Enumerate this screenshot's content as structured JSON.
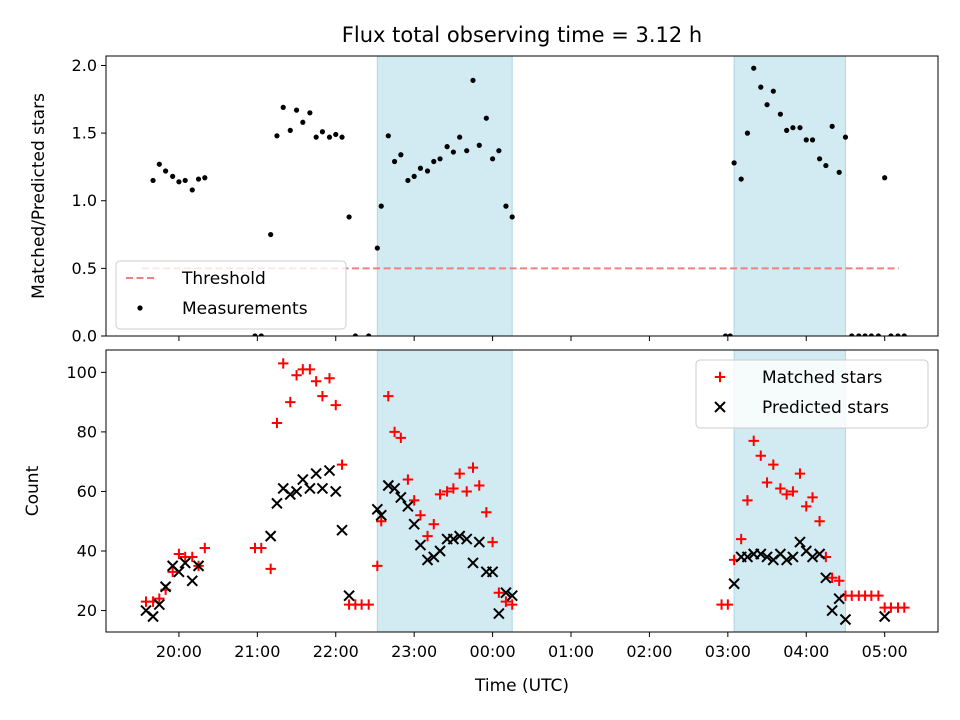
{
  "chart_data": {
    "type": "scatter",
    "title": "Flux total observing time = 3.12 h",
    "xlabel": "Time (UTC)",
    "x_unit": "hours since 00:00 UTC (values after midnight continue past 24)",
    "x_tick_labels": [
      "20:00",
      "21:00",
      "22:00",
      "23:00",
      "00:00",
      "01:00",
      "02:00",
      "03:00",
      "04:00",
      "05:00"
    ],
    "x_tick_values": [
      20,
      21,
      22,
      23,
      24,
      25,
      26,
      27,
      28,
      29
    ],
    "xlim": [
      19.07,
      29.68
    ],
    "observing_windows": [
      [
        22.53,
        24.25
      ],
      [
        27.08,
        28.5
      ]
    ],
    "window_color": "#add8e6",
    "panels": [
      {
        "ylabel": "Matched/Predicted stars",
        "ylim": [
          0,
          2.07
        ],
        "y_ticks": [
          "0.0",
          "0.5",
          "1.0",
          "1.5",
          "2.0"
        ],
        "y_tick_values": [
          0,
          0.5,
          1.0,
          1.5,
          2.0
        ],
        "legend_position": "lower-left",
        "series": [
          {
            "name": "Threshold",
            "kind": "dashed-line",
            "color": "#f08080",
            "points": [
              [
                19.53,
                0.5
              ],
              [
                29.18,
                0.5
              ]
            ]
          },
          {
            "name": "Measurements",
            "kind": "dots",
            "color": "#000000",
            "points": [
              [
                19.67,
                1.15
              ],
              [
                19.75,
                1.27
              ],
              [
                19.83,
                1.22
              ],
              [
                19.92,
                1.18
              ],
              [
                20.0,
                1.14
              ],
              [
                20.08,
                1.15
              ],
              [
                20.17,
                1.08
              ],
              [
                20.25,
                1.16
              ],
              [
                20.33,
                1.17
              ],
              [
                20.97,
                0.0
              ],
              [
                21.05,
                0.0
              ],
              [
                21.17,
                0.75
              ],
              [
                21.25,
                1.48
              ],
              [
                21.33,
                1.69
              ],
              [
                21.42,
                1.52
              ],
              [
                21.5,
                1.67
              ],
              [
                21.58,
                1.58
              ],
              [
                21.67,
                1.65
              ],
              [
                21.75,
                1.47
              ],
              [
                21.83,
                1.51
              ],
              [
                21.92,
                1.47
              ],
              [
                22.0,
                1.49
              ],
              [
                22.08,
                1.47
              ],
              [
                22.17,
                0.88
              ],
              [
                22.25,
                0.0
              ],
              [
                22.42,
                0.0
              ],
              [
                22.53,
                0.65
              ],
              [
                22.58,
                0.96
              ],
              [
                22.67,
                1.48
              ],
              [
                22.75,
                1.29
              ],
              [
                22.83,
                1.34
              ],
              [
                22.92,
                1.15
              ],
              [
                23.0,
                1.18
              ],
              [
                23.08,
                1.24
              ],
              [
                23.17,
                1.22
              ],
              [
                23.25,
                1.29
              ],
              [
                23.33,
                1.31
              ],
              [
                23.42,
                1.4
              ],
              [
                23.5,
                1.36
              ],
              [
                23.58,
                1.47
              ],
              [
                23.67,
                1.37
              ],
              [
                23.75,
                1.89
              ],
              [
                23.83,
                1.41
              ],
              [
                23.92,
                1.61
              ],
              [
                24.0,
                1.31
              ],
              [
                24.08,
                1.37
              ],
              [
                24.17,
                0.96
              ],
              [
                24.25,
                0.88
              ],
              [
                26.97,
                0.0
              ],
              [
                27.03,
                0.0
              ],
              [
                27.08,
                1.28
              ],
              [
                27.17,
                1.16
              ],
              [
                27.25,
                1.5
              ],
              [
                27.33,
                1.98
              ],
              [
                27.42,
                1.84
              ],
              [
                27.5,
                1.71
              ],
              [
                27.58,
                1.81
              ],
              [
                27.67,
                1.64
              ],
              [
                27.75,
                1.52
              ],
              [
                27.83,
                1.54
              ],
              [
                27.92,
                1.54
              ],
              [
                28.0,
                1.45
              ],
              [
                28.08,
                1.45
              ],
              [
                28.17,
                1.31
              ],
              [
                28.25,
                1.26
              ],
              [
                28.33,
                1.55
              ],
              [
                28.42,
                1.21
              ],
              [
                28.5,
                1.47
              ],
              [
                28.58,
                0.0
              ],
              [
                28.67,
                0.0
              ],
              [
                28.75,
                0.0
              ],
              [
                28.83,
                0.0
              ],
              [
                28.92,
                0.0
              ],
              [
                29.0,
                1.17
              ],
              [
                29.08,
                0.0
              ],
              [
                29.17,
                0.0
              ],
              [
                29.25,
                0.0
              ]
            ]
          }
        ]
      },
      {
        "ylabel": "Count",
        "ylim": [
          12.8,
          107.5
        ],
        "y_ticks": [
          "20",
          "40",
          "60",
          "80",
          "100"
        ],
        "y_tick_values": [
          20,
          40,
          60,
          80,
          100
        ],
        "legend_position": "upper-right",
        "series": [
          {
            "name": "Matched stars",
            "kind": "plus",
            "color": "#ff0000",
            "points": [
              [
                19.58,
                23
              ],
              [
                19.67,
                23
              ],
              [
                19.75,
                24
              ],
              [
                19.83,
                27
              ],
              [
                19.92,
                33
              ],
              [
                20.0,
                39
              ],
              [
                20.08,
                38
              ],
              [
                20.17,
                38
              ],
              [
                20.25,
                35
              ],
              [
                20.33,
                41
              ],
              [
                20.97,
                41
              ],
              [
                21.05,
                41
              ],
              [
                21.17,
                34
              ],
              [
                21.25,
                83
              ],
              [
                21.33,
                103
              ],
              [
                21.42,
                90
              ],
              [
                21.5,
                99
              ],
              [
                21.58,
                101
              ],
              [
                21.67,
                101
              ],
              [
                21.75,
                97
              ],
              [
                21.83,
                92
              ],
              [
                21.92,
                98
              ],
              [
                22.0,
                89
              ],
              [
                22.08,
                69
              ],
              [
                22.17,
                22
              ],
              [
                22.25,
                22
              ],
              [
                22.33,
                22
              ],
              [
                22.42,
                22
              ],
              [
                22.53,
                35
              ],
              [
                22.58,
                50
              ],
              [
                22.67,
                92
              ],
              [
                22.75,
                80
              ],
              [
                22.83,
                78
              ],
              [
                22.92,
                64
              ],
              [
                23.0,
                57
              ],
              [
                23.08,
                52
              ],
              [
                23.17,
                45
              ],
              [
                23.25,
                49
              ],
              [
                23.33,
                59
              ],
              [
                23.42,
                60
              ],
              [
                23.5,
                61
              ],
              [
                23.58,
                66
              ],
              [
                23.67,
                60
              ],
              [
                23.75,
                68
              ],
              [
                23.83,
                62
              ],
              [
                23.92,
                53
              ],
              [
                24.0,
                43
              ],
              [
                24.08,
                26
              ],
              [
                24.17,
                23
              ],
              [
                24.25,
                22
              ],
              [
                26.92,
                22
              ],
              [
                27.0,
                22
              ],
              [
                27.08,
                37
              ],
              [
                27.17,
                44
              ],
              [
                27.25,
                57
              ],
              [
                27.33,
                77
              ],
              [
                27.42,
                72
              ],
              [
                27.5,
                63
              ],
              [
                27.58,
                69
              ],
              [
                27.67,
                61
              ],
              [
                27.75,
                59
              ],
              [
                27.83,
                60
              ],
              [
                27.92,
                66
              ],
              [
                28.0,
                55
              ],
              [
                28.08,
                58
              ],
              [
                28.17,
                50
              ],
              [
                28.25,
                38
              ],
              [
                28.33,
                31
              ],
              [
                28.42,
                30
              ],
              [
                28.5,
                25
              ],
              [
                28.58,
                25
              ],
              [
                28.67,
                25
              ],
              [
                28.75,
                25
              ],
              [
                28.83,
                25
              ],
              [
                28.92,
                25
              ],
              [
                29.0,
                21
              ],
              [
                29.08,
                21
              ],
              [
                29.17,
                21
              ],
              [
                29.25,
                21
              ]
            ]
          },
          {
            "name": "Predicted stars",
            "kind": "cross",
            "color": "#000000",
            "points": [
              [
                19.58,
                20
              ],
              [
                19.67,
                18
              ],
              [
                19.75,
                22
              ],
              [
                19.83,
                28
              ],
              [
                19.92,
                35
              ],
              [
                20.0,
                33
              ],
              [
                20.08,
                36
              ],
              [
                20.17,
                30
              ],
              [
                20.25,
                35
              ],
              [
                21.17,
                45
              ],
              [
                21.25,
                56
              ],
              [
                21.33,
                61
              ],
              [
                21.42,
                59
              ],
              [
                21.5,
                60
              ],
              [
                21.58,
                64
              ],
              [
                21.67,
                61
              ],
              [
                21.75,
                66
              ],
              [
                21.83,
                61
              ],
              [
                21.92,
                67
              ],
              [
                22.0,
                60
              ],
              [
                22.08,
                47
              ],
              [
                22.17,
                25
              ],
              [
                22.53,
                54
              ],
              [
                22.58,
                52
              ],
              [
                22.67,
                62
              ],
              [
                22.75,
                61
              ],
              [
                22.83,
                58
              ],
              [
                22.92,
                55
              ],
              [
                23.0,
                49
              ],
              [
                23.08,
                42
              ],
              [
                23.17,
                37
              ],
              [
                23.25,
                38
              ],
              [
                23.33,
                40
              ],
              [
                23.42,
                44
              ],
              [
                23.5,
                44
              ],
              [
                23.58,
                45
              ],
              [
                23.67,
                44
              ],
              [
                23.75,
                36
              ],
              [
                23.83,
                43
              ],
              [
                23.92,
                33
              ],
              [
                24.0,
                33
              ],
              [
                24.08,
                19
              ],
              [
                24.17,
                26
              ],
              [
                24.25,
                25
              ],
              [
                27.08,
                29
              ],
              [
                27.17,
                38
              ],
              [
                27.25,
                38
              ],
              [
                27.33,
                39
              ],
              [
                27.42,
                39
              ],
              [
                27.5,
                38
              ],
              [
                27.58,
                37
              ],
              [
                27.67,
                39
              ],
              [
                27.75,
                37
              ],
              [
                27.83,
                38
              ],
              [
                27.92,
                43
              ],
              [
                28.0,
                40
              ],
              [
                28.08,
                38
              ],
              [
                28.17,
                39
              ],
              [
                28.25,
                31
              ],
              [
                28.33,
                20
              ],
              [
                28.42,
                24
              ],
              [
                28.5,
                17
              ],
              [
                29.0,
                18
              ]
            ]
          }
        ]
      }
    ]
  }
}
